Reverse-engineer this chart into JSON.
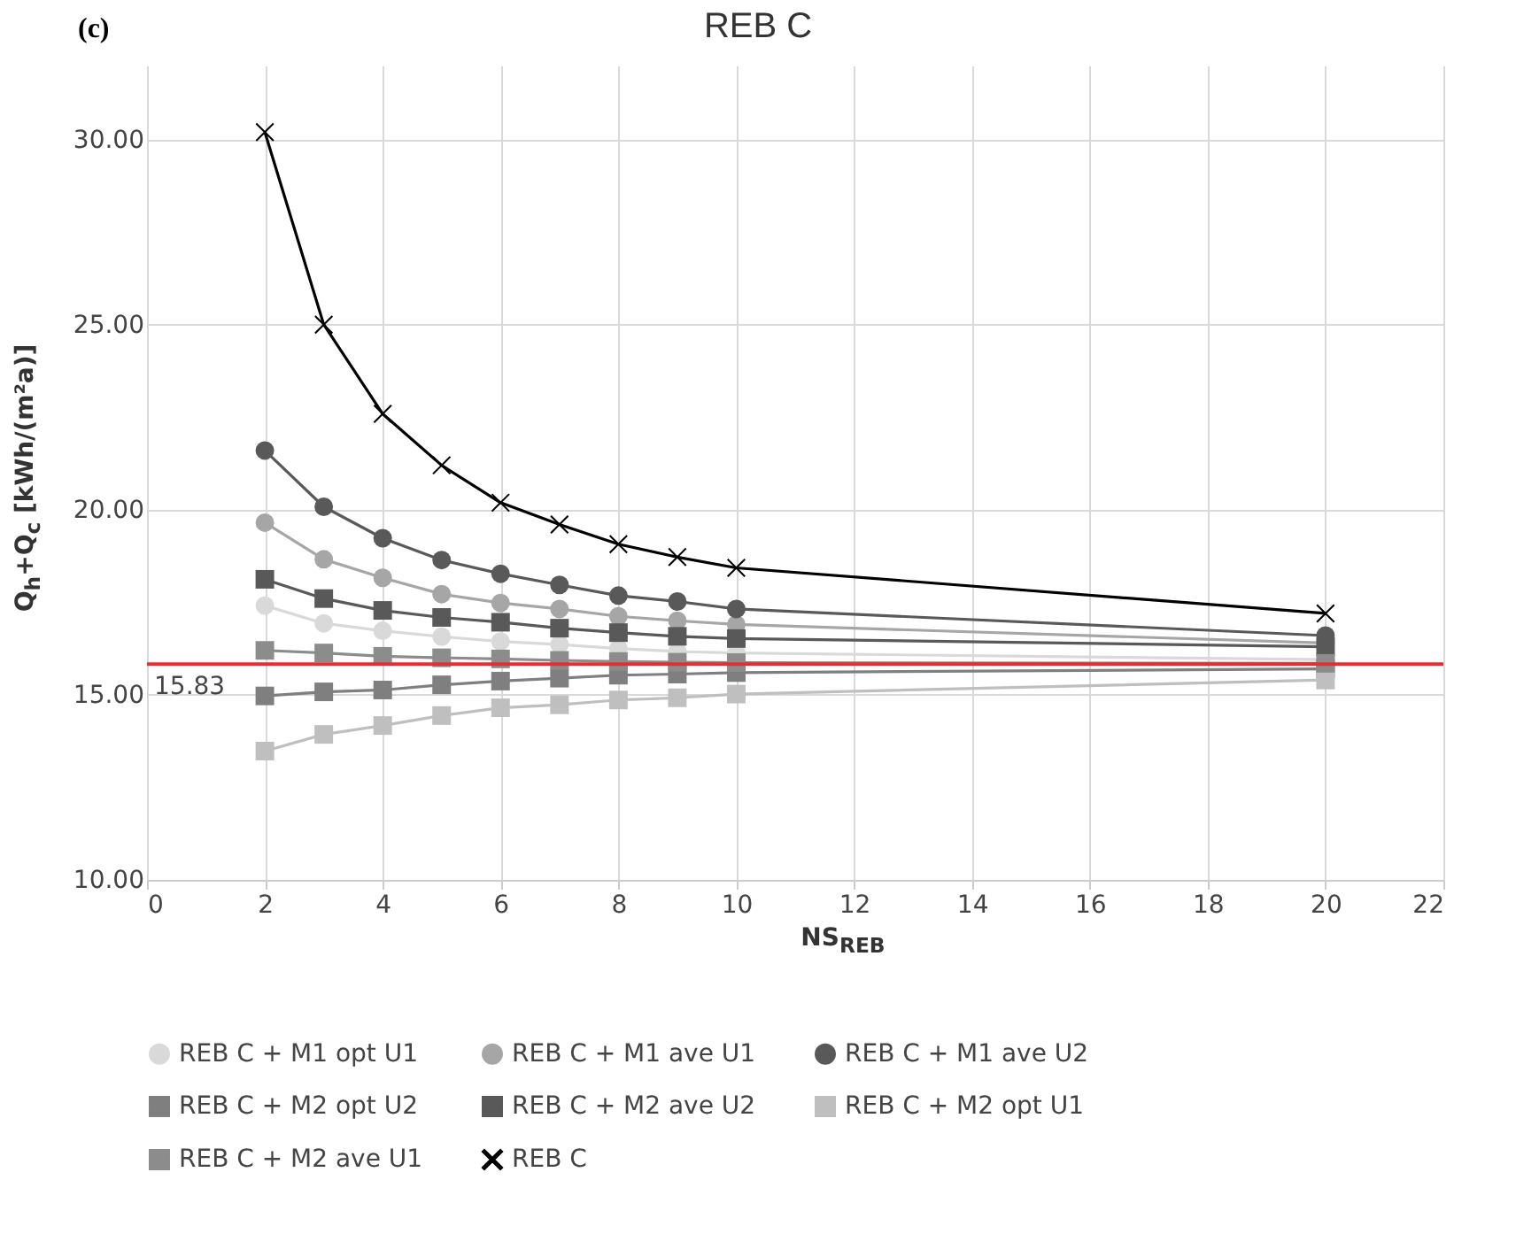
{
  "chart_data": {
    "type": "line",
    "title": "REB C",
    "xlabel": "NS$_{REB}$",
    "ylabel": "Q$_{h}$+Q$_{c}$ [kWh/(m²a)]",
    "annotations": [
      "(c)"
    ],
    "x": [
      2,
      3,
      4,
      5,
      6,
      7,
      8,
      9,
      10,
      20
    ],
    "xlim": [
      0,
      22
    ],
    "xticks": [
      0,
      2,
      4,
      6,
      8,
      10,
      12,
      14,
      16,
      18,
      20,
      22
    ],
    "ylim": [
      10,
      32
    ],
    "yticks": [
      {
        "value": 10,
        "label": "10.00"
      },
      {
        "value": 15,
        "label": "15.00"
      },
      {
        "value": 20,
        "label": "20.00"
      },
      {
        "value": 25,
        "label": "25.00"
      },
      {
        "value": 30,
        "label": "30.00"
      }
    ],
    "grid": true,
    "legend": "bottom",
    "ref_lines": [
      {
        "axis": "y",
        "value": 15.83,
        "label": "15.83",
        "color": "#e03030"
      }
    ],
    "series": [
      {
        "name": "REB C + M1 opt U1",
        "color": "#d9d9d9",
        "marker": "circle",
        "values": [
          17.41,
          16.93,
          16.73,
          16.57,
          16.44,
          16.36,
          16.25,
          16.17,
          16.13,
          15.95
        ]
      },
      {
        "name": "REB C + M1 ave U1",
        "color": "#a6a6a6",
        "marker": "circle",
        "values": [
          19.65,
          18.66,
          18.16,
          17.72,
          17.48,
          17.32,
          17.12,
          17.0,
          16.9,
          16.4
        ]
      },
      {
        "name": "REB C + M1 ave U2",
        "color": "#595959",
        "marker": "circle",
        "values": [
          21.6,
          20.08,
          19.23,
          18.64,
          18.27,
          17.97,
          17.68,
          17.52,
          17.32,
          16.6
        ]
      },
      {
        "name": "REB C + M2 opt U2",
        "color": "#7f7f7f",
        "marker": "square",
        "values": [
          14.97,
          15.08,
          15.13,
          15.27,
          15.37,
          15.45,
          15.53,
          15.56,
          15.6,
          15.7
        ]
      },
      {
        "name": "REB C + M2 ave U2",
        "color": "#595959",
        "marker": "square",
        "values": [
          18.12,
          17.6,
          17.28,
          17.09,
          16.96,
          16.8,
          16.68,
          16.58,
          16.52,
          16.3
        ]
      },
      {
        "name": "REB C + M2 opt U1",
        "color": "#bfbfbf",
        "marker": "square",
        "values": [
          13.48,
          13.93,
          14.17,
          14.44,
          14.65,
          14.73,
          14.86,
          14.92,
          15.02,
          15.4
        ]
      },
      {
        "name": "REB C + M2 ave U1",
        "color": "#8c8c8c",
        "marker": "square",
        "values": [
          16.2,
          16.13,
          16.04,
          16.0,
          15.97,
          15.93,
          15.9,
          15.88,
          15.87,
          15.85
        ]
      },
      {
        "name": "REB C",
        "color": "#000000",
        "marker": "cross",
        "values": [
          30.2,
          25.0,
          22.59,
          21.2,
          20.19,
          19.6,
          19.07,
          18.72,
          18.43,
          17.2
        ]
      }
    ]
  }
}
